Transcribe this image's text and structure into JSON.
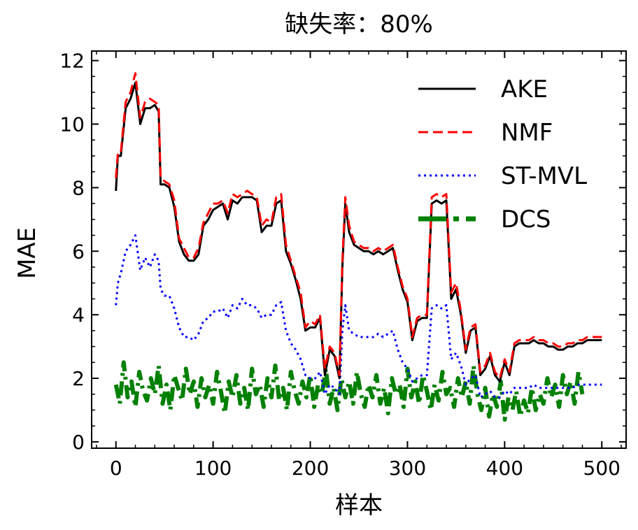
{
  "chart_data": {
    "type": "line",
    "title": "缺失率：80%",
    "xlabel": "样本",
    "ylabel": "MAE",
    "xlim": [
      -25,
      525
    ],
    "ylim": [
      -0.2,
      12.3
    ],
    "xticks": [
      0,
      100,
      200,
      300,
      400,
      500
    ],
    "yticks": [
      0,
      2,
      4,
      6,
      8,
      10,
      12
    ],
    "grid": false,
    "legend_position": "top-right",
    "series": [
      {
        "name": "AKE",
        "color": "#000000",
        "style": "solid",
        "x": [
          0,
          2,
          5,
          10,
          15,
          20,
          25,
          30,
          35,
          40,
          44,
          46,
          50,
          55,
          60,
          65,
          70,
          75,
          80,
          85,
          90,
          95,
          100,
          105,
          110,
          115,
          120,
          125,
          130,
          135,
          140,
          145,
          150,
          155,
          160,
          165,
          170,
          175,
          180,
          185,
          190,
          195,
          200,
          205,
          210,
          215,
          220,
          225,
          230,
          233,
          236,
          240,
          245,
          250,
          255,
          260,
          265,
          270,
          275,
          280,
          285,
          290,
          295,
          300,
          305,
          310,
          315,
          320,
          325,
          330,
          335,
          340,
          345,
          350,
          355,
          360,
          365,
          370,
          375,
          380,
          385,
          390,
          395,
          400,
          405,
          410,
          415,
          420,
          425,
          430,
          435,
          440,
          445,
          450,
          455,
          460,
          465,
          470,
          475,
          480,
          485,
          490,
          495,
          500
        ],
        "values": [
          7.9,
          9.0,
          9.0,
          10.5,
          10.8,
          11.3,
          10.0,
          10.5,
          10.5,
          10.6,
          10.4,
          8.1,
          8.1,
          8.0,
          7.4,
          6.3,
          5.9,
          5.7,
          5.7,
          5.9,
          6.8,
          7.0,
          7.3,
          7.4,
          7.5,
          7.0,
          7.6,
          7.5,
          7.7,
          7.7,
          7.7,
          7.6,
          6.6,
          6.8,
          6.8,
          7.5,
          7.6,
          6.0,
          5.6,
          5.1,
          4.5,
          3.5,
          3.6,
          3.6,
          3.9,
          2.1,
          2.9,
          2.7,
          2.0,
          5.5,
          7.5,
          6.6,
          6.2,
          6.1,
          6.0,
          6.0,
          5.9,
          6.0,
          5.9,
          6.0,
          6.1,
          5.4,
          4.8,
          4.4,
          3.2,
          3.8,
          3.9,
          3.9,
          7.5,
          7.6,
          7.5,
          7.6,
          4.5,
          4.8,
          4.0,
          2.8,
          3.5,
          3.6,
          2.1,
          2.3,
          2.7,
          2.1,
          1.9,
          2.5,
          2.1,
          3.0,
          3.1,
          3.1,
          3.1,
          3.2,
          3.1,
          3.1,
          3.0,
          3.0,
          2.9,
          2.9,
          3.0,
          3.0,
          3.1,
          3.1,
          3.2,
          3.2,
          3.2,
          3.2
        ]
      },
      {
        "name": "NMF",
        "color": "#ff0000",
        "style": "dashed",
        "x": [
          0,
          2,
          5,
          10,
          15,
          20,
          25,
          30,
          35,
          40,
          44,
          46,
          50,
          55,
          60,
          65,
          70,
          75,
          80,
          85,
          90,
          95,
          100,
          105,
          110,
          115,
          120,
          125,
          130,
          135,
          140,
          145,
          150,
          155,
          160,
          165,
          170,
          175,
          180,
          185,
          190,
          195,
          200,
          205,
          210,
          215,
          220,
          225,
          230,
          233,
          236,
          240,
          245,
          250,
          255,
          260,
          265,
          270,
          275,
          280,
          285,
          290,
          295,
          300,
          305,
          310,
          315,
          320,
          325,
          330,
          335,
          340,
          345,
          350,
          355,
          360,
          365,
          370,
          375,
          380,
          385,
          390,
          395,
          400,
          405,
          410,
          415,
          420,
          425,
          430,
          435,
          440,
          445,
          450,
          455,
          460,
          465,
          470,
          475,
          480,
          485,
          490,
          495,
          500
        ],
        "values": [
          8.3,
          9.1,
          9.1,
          10.7,
          11.0,
          11.6,
          10.2,
          10.7,
          10.8,
          10.7,
          10.6,
          8.3,
          8.2,
          8.1,
          7.6,
          6.4,
          6.1,
          5.8,
          5.8,
          6.1,
          6.9,
          7.2,
          7.5,
          7.5,
          7.6,
          7.2,
          7.8,
          7.7,
          7.8,
          7.9,
          7.8,
          7.7,
          6.8,
          7.0,
          6.9,
          7.7,
          7.8,
          6.2,
          5.7,
          5.2,
          4.7,
          3.6,
          3.8,
          3.7,
          4.0,
          2.3,
          3.0,
          2.8,
          2.1,
          5.7,
          7.7,
          6.8,
          6.3,
          6.2,
          6.1,
          6.1,
          6.0,
          6.1,
          6.0,
          6.1,
          6.2,
          5.5,
          4.9,
          4.5,
          3.3,
          3.9,
          4.0,
          4.0,
          7.7,
          7.8,
          7.7,
          7.8,
          4.7,
          5.0,
          4.1,
          2.9,
          3.6,
          3.7,
          2.2,
          2.4,
          2.8,
          2.2,
          2.0,
          2.6,
          2.2,
          3.1,
          3.2,
          3.2,
          3.2,
          3.3,
          3.2,
          3.2,
          3.1,
          3.1,
          3.0,
          3.0,
          3.1,
          3.1,
          3.2,
          3.2,
          3.3,
          3.3,
          3.3,
          3.3
        ]
      },
      {
        "name": "ST-MVL",
        "color": "#0000ff",
        "style": "dotted",
        "x": [
          0,
          2,
          5,
          10,
          15,
          20,
          25,
          30,
          35,
          40,
          44,
          46,
          50,
          55,
          60,
          65,
          70,
          75,
          80,
          85,
          90,
          95,
          100,
          105,
          110,
          115,
          120,
          125,
          130,
          135,
          140,
          145,
          150,
          155,
          160,
          165,
          170,
          175,
          180,
          185,
          190,
          195,
          200,
          205,
          210,
          215,
          220,
          225,
          230,
          233,
          236,
          240,
          245,
          250,
          255,
          260,
          265,
          270,
          275,
          280,
          285,
          290,
          295,
          300,
          305,
          310,
          315,
          320,
          325,
          330,
          335,
          340,
          345,
          350,
          355,
          360,
          365,
          370,
          375,
          380,
          385,
          390,
          395,
          400,
          405,
          410,
          415,
          420,
          425,
          430,
          435,
          440,
          445,
          450,
          455,
          460,
          465,
          470,
          475,
          480,
          485,
          490,
          495,
          500
        ],
        "values": [
          4.3,
          5.0,
          5.3,
          6.0,
          6.2,
          6.5,
          5.4,
          5.8,
          5.5,
          5.9,
          5.7,
          4.8,
          4.6,
          4.6,
          4.2,
          3.6,
          3.3,
          3.3,
          3.2,
          3.4,
          3.8,
          3.9,
          4.1,
          4.1,
          4.2,
          3.9,
          4.3,
          4.2,
          4.5,
          4.3,
          4.3,
          4.2,
          3.9,
          4.0,
          4.0,
          4.3,
          4.4,
          3.5,
          3.1,
          2.9,
          2.6,
          2.1,
          2.0,
          2.0,
          2.2,
          1.5,
          1.8,
          1.7,
          1.5,
          3.5,
          4.3,
          3.5,
          3.4,
          3.3,
          3.3,
          3.3,
          3.3,
          3.4,
          3.3,
          3.4,
          3.5,
          2.9,
          2.5,
          2.3,
          1.9,
          2.0,
          2.1,
          2.1,
          4.2,
          4.3,
          4.2,
          4.3,
          2.6,
          2.8,
          2.4,
          1.8,
          2.0,
          2.1,
          1.4,
          1.5,
          1.6,
          1.4,
          1.4,
          1.6,
          1.5,
          1.7,
          1.7,
          1.7,
          1.7,
          1.8,
          1.7,
          1.7,
          1.7,
          1.7,
          1.7,
          1.7,
          1.7,
          1.7,
          1.8,
          1.8,
          1.8,
          1.8,
          1.8,
          1.8
        ]
      },
      {
        "name": "DCS",
        "color": "#008000",
        "style": "dashdot",
        "x_start": 0,
        "x_step": 4,
        "values": [
          1.8,
          1.2,
          2.5,
          1.4,
          1.9,
          1.1,
          2.2,
          1.6,
          1.3,
          2.0,
          1.5,
          2.4,
          1.2,
          1.8,
          1.0,
          2.1,
          1.7,
          1.3,
          2.3,
          1.5,
          1.9,
          1.1,
          2.0,
          1.4,
          1.8,
          1.2,
          2.2,
          1.6,
          0.9,
          1.9,
          1.4,
          2.1,
          1.2,
          1.7,
          1.0,
          2.3,
          1.5,
          1.8,
          1.1,
          2.0,
          1.4,
          2.4,
          1.3,
          1.7,
          1.0,
          2.2,
          1.6,
          1.2,
          1.9,
          1.4,
          2.1,
          1.1,
          1.8,
          1.5,
          2.3,
          1.2,
          1.7,
          1.0,
          2.0,
          1.4,
          1.9,
          1.2,
          2.2,
          1.5,
          1.1,
          1.8,
          1.4,
          2.1,
          1.2,
          1.7,
          0.9,
          2.0,
          1.5,
          1.8,
          1.1,
          2.3,
          1.4,
          1.9,
          1.2,
          2.1,
          1.6,
          1.0,
          1.8,
          1.3,
          2.2,
          1.5,
          1.7,
          1.1,
          2.0,
          1.4,
          1.9,
          1.2,
          2.4,
          1.5,
          1.0,
          1.7,
          0.8,
          1.5,
          1.1,
          1.9,
          0.7,
          1.4,
          1.0,
          1.6,
          0.8,
          1.3,
          0.9,
          1.7,
          1.0,
          1.5,
          1.2,
          2.0,
          1.4,
          1.8,
          1.1,
          2.1,
          1.5,
          1.9,
          1.2,
          2.2,
          1.5
        ]
      }
    ]
  }
}
